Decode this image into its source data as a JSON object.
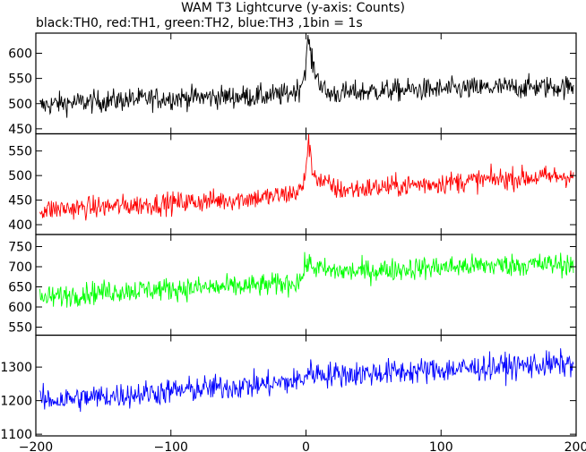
{
  "chart_data": {
    "type": "line",
    "title": "WAM T3 Lightcurve (y-axis: Counts)",
    "subtitle": "black:TH0, red:TH1, green:TH2, blue:TH3 ,1bin = 1s",
    "x_range": [
      -200,
      200
    ],
    "x_ticks": [
      -200,
      -100,
      0,
      100,
      200
    ],
    "grid": false,
    "panels": [
      {
        "name": "TH0",
        "color": "#000000",
        "ylim": [
          440,
          640
        ],
        "yticks": [
          450,
          500,
          550,
          600
        ],
        "points": [
          [
            -197,
            495
          ],
          [
            -185,
            500
          ],
          [
            -170,
            502
          ],
          [
            -150,
            505
          ],
          [
            -130,
            508
          ],
          [
            -110,
            510
          ],
          [
            -90,
            512
          ],
          [
            -70,
            513
          ],
          [
            -50,
            514
          ],
          [
            -30,
            515
          ],
          [
            -15,
            518
          ],
          [
            -5,
            530
          ],
          [
            -1,
            560
          ],
          [
            1,
            610
          ],
          [
            2,
            630
          ],
          [
            4,
            585
          ],
          [
            8,
            555
          ],
          [
            15,
            520
          ],
          [
            25,
            520
          ],
          [
            50,
            525
          ],
          [
            75,
            527
          ],
          [
            100,
            528
          ],
          [
            125,
            530
          ],
          [
            150,
            532
          ],
          [
            175,
            533
          ],
          [
            198,
            533
          ]
        ],
        "noise": 22
      },
      {
        "name": "TH1",
        "color": "#ff0000",
        "ylim": [
          380,
          585
        ],
        "yticks": [
          400,
          450,
          500,
          550
        ],
        "points": [
          [
            -197,
            430
          ],
          [
            -175,
            433
          ],
          [
            -150,
            436
          ],
          [
            -125,
            440
          ],
          [
            -100,
            444
          ],
          [
            -75,
            448
          ],
          [
            -50,
            452
          ],
          [
            -25,
            457
          ],
          [
            -8,
            465
          ],
          [
            -2,
            475
          ],
          [
            1,
            545
          ],
          [
            2,
            575
          ],
          [
            4,
            515
          ],
          [
            10,
            490
          ],
          [
            25,
            470
          ],
          [
            50,
            475
          ],
          [
            75,
            480
          ],
          [
            100,
            485
          ],
          [
            125,
            490
          ],
          [
            150,
            494
          ],
          [
            175,
            497
          ],
          [
            198,
            500
          ]
        ],
        "noise": 22
      },
      {
        "name": "TH2",
        "color": "#00ff00",
        "ylim": [
          530,
          780
        ],
        "yticks": [
          550,
          600,
          650,
          700,
          750
        ],
        "points": [
          [
            -197,
            620
          ],
          [
            -175,
            630
          ],
          [
            -150,
            638
          ],
          [
            -125,
            642
          ],
          [
            -100,
            645
          ],
          [
            -75,
            648
          ],
          [
            -50,
            650
          ],
          [
            -25,
            655
          ],
          [
            -10,
            660
          ],
          [
            -3,
            670
          ],
          [
            0,
            710
          ],
          [
            5,
            700
          ],
          [
            15,
            690
          ],
          [
            35,
            688
          ],
          [
            60,
            692
          ],
          [
            85,
            697
          ],
          [
            110,
            700
          ],
          [
            135,
            703
          ],
          [
            160,
            705
          ],
          [
            185,
            706
          ],
          [
            198,
            707
          ]
        ],
        "noise": 28
      },
      {
        "name": "TH3",
        "color": "#0000ff",
        "ylim": [
          1095,
          1395
        ],
        "yticks": [
          1100,
          1200,
          1300
        ],
        "points": [
          [
            -197,
            1200
          ],
          [
            -175,
            1205
          ],
          [
            -150,
            1212
          ],
          [
            -125,
            1220
          ],
          [
            -100,
            1228
          ],
          [
            -75,
            1236
          ],
          [
            -50,
            1243
          ],
          [
            -25,
            1250
          ],
          [
            -8,
            1258
          ],
          [
            -2,
            1265
          ],
          [
            2,
            1285
          ],
          [
            15,
            1278
          ],
          [
            40,
            1280
          ],
          [
            65,
            1285
          ],
          [
            90,
            1290
          ],
          [
            115,
            1295
          ],
          [
            140,
            1300
          ],
          [
            165,
            1305
          ],
          [
            185,
            1308
          ],
          [
            198,
            1310
          ]
        ],
        "noise": 38
      }
    ]
  }
}
